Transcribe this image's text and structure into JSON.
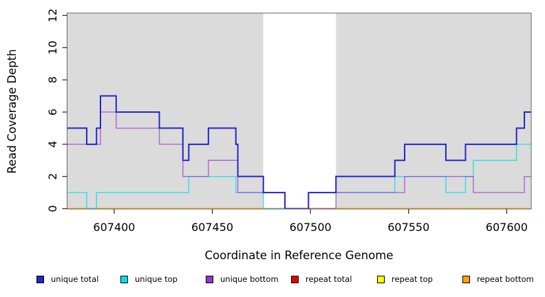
{
  "figure": {
    "background": "#FFFFFF",
    "plot_background": "#DBDBDB",
    "box_color": "#666666",
    "tick_color": "#222222",
    "label_color": "#000000"
  },
  "chart_data": {
    "type": "line",
    "subtype": "step",
    "title": "",
    "xlabel": "Coordinate in Reference Genome",
    "ylabel": "Read Coverage Depth",
    "xlim": [
      607376,
      607612.5
    ],
    "ylim": [
      0,
      12
    ],
    "x_ticks": [
      607400,
      607450,
      607500,
      607550,
      607600
    ],
    "y_ticks": [
      0,
      2,
      4,
      6,
      8,
      10,
      12
    ],
    "grid": false,
    "legend_position": "bottom",
    "highlight_band": {
      "x_start": 607476,
      "x_end": 607513,
      "color": "#FFFFFF"
    },
    "series": [
      {
        "name": "repeat total",
        "color": "#E60000",
        "points": [
          [
            607376,
            0
          ]
        ]
      },
      {
        "name": "repeat top",
        "color": "#FFFF00",
        "points": [
          [
            607376,
            0
          ]
        ]
      },
      {
        "name": "repeat bottom",
        "color": "#FFA000",
        "points": [
          [
            607376,
            0
          ]
        ]
      },
      {
        "name": "unique top",
        "color": "#00E0E8",
        "points": [
          [
            607376,
            1
          ],
          [
            607386,
            0
          ],
          [
            607391,
            1
          ],
          [
            607438,
            2
          ],
          [
            607462,
            1
          ],
          [
            607476,
            0
          ],
          [
            607499,
            1
          ],
          [
            607543,
            2
          ],
          [
            607569,
            1
          ],
          [
            607579,
            2
          ],
          [
            607583,
            3
          ],
          [
            607605,
            4
          ]
        ]
      },
      {
        "name": "unique bottom",
        "color": "#9932CC",
        "points": [
          [
            607376,
            4
          ],
          [
            607393,
            6
          ],
          [
            607401,
            5
          ],
          [
            607423,
            4
          ],
          [
            607435,
            2
          ],
          [
            607448,
            3
          ],
          [
            607463,
            1
          ],
          [
            607487,
            0
          ],
          [
            607513,
            1
          ],
          [
            607548,
            2
          ],
          [
            607583,
            1
          ],
          [
            607609,
            2
          ]
        ]
      },
      {
        "name": "unique total",
        "color": "#2424CC",
        "points": [
          [
            607376,
            5
          ],
          [
            607386,
            4
          ],
          [
            607391,
            5
          ],
          [
            607393,
            7
          ],
          [
            607401,
            6
          ],
          [
            607423,
            5
          ],
          [
            607435,
            3
          ],
          [
            607438,
            4
          ],
          [
            607448,
            5
          ],
          [
            607462,
            4
          ],
          [
            607463,
            2
          ],
          [
            607476,
            1
          ],
          [
            607487,
            0
          ],
          [
            607499,
            1
          ],
          [
            607513,
            2
          ],
          [
            607543,
            3
          ],
          [
            607548,
            4
          ],
          [
            607569,
            3
          ],
          [
            607579,
            4
          ],
          [
            607605,
            5
          ],
          [
            607609,
            6
          ]
        ]
      }
    ],
    "legend_order": [
      "unique total",
      "unique top",
      "unique bottom",
      "repeat total",
      "repeat top",
      "repeat bottom"
    ]
  }
}
